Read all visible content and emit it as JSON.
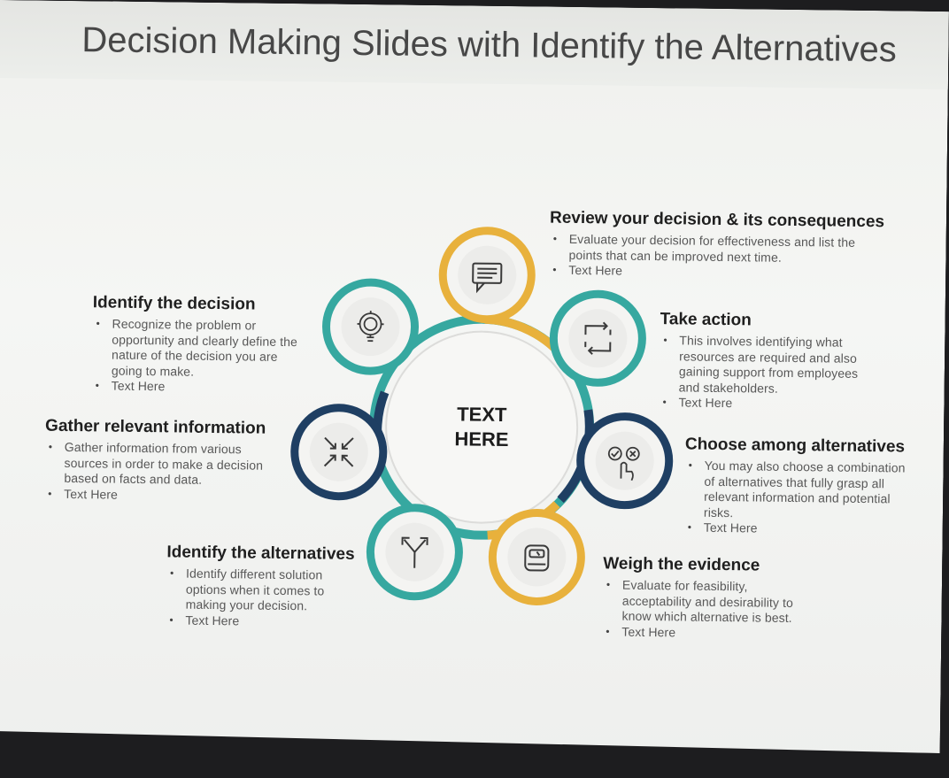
{
  "title": "Decision Making Slides with Identify the Alternatives",
  "center_label_line1": "TEXT",
  "center_label_line2": "HERE",
  "colors": {
    "teal": "#36a8a0",
    "gold": "#e8b13c",
    "navy": "#1f3f63",
    "text": "#585858",
    "heading": "#1f1f1f"
  },
  "steps": [
    {
      "heading": "Review your decision & its consequences",
      "icon": "document-icon",
      "bullets": [
        "Evaluate your decision for effectiveness and list the points that can be improved next time.",
        "Text Here"
      ]
    },
    {
      "heading": "Take action",
      "icon": "refresh-arrows-icon",
      "bullets": [
        "This involves identifying what resources are required and also gaining support from employees and stakeholders.",
        "Text Here"
      ]
    },
    {
      "heading": "Choose among alternatives",
      "icon": "choice-hand-icon",
      "bullets": [
        "You may also choose a combination of alternatives that fully grasp all relevant information and potential risks.",
        "Text Here"
      ]
    },
    {
      "heading": "Weigh the evidence",
      "icon": "scale-icon",
      "bullets": [
        "Evaluate for feasibility, acceptability and desirability to know which alternative is best.",
        "Text Here"
      ]
    },
    {
      "heading": "Identify the alternatives",
      "icon": "split-arrows-icon",
      "bullets": [
        "Identify different solution options when it comes to making your decision.",
        "Text Here"
      ]
    },
    {
      "heading": "Gather relevant information",
      "icon": "converge-arrows-icon",
      "bullets": [
        "Gather information from various sources in order to make a decision based on facts and data.",
        "Text Here"
      ]
    },
    {
      "heading": "Identify the decision",
      "icon": "lightbulb-gear-icon",
      "bullets": [
        "Recognize the problem or opportunity and clearly define the nature of the decision you are going to make.",
        "Text Here"
      ]
    }
  ]
}
